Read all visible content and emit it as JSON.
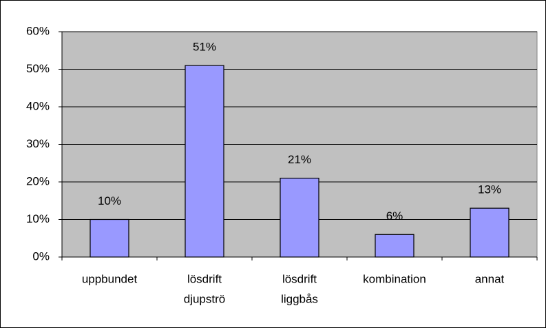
{
  "chart_data": {
    "type": "bar",
    "categories": [
      [
        "uppbundet"
      ],
      [
        "lösdrift",
        "djupströ"
      ],
      [
        "lösdrift",
        "liggbås"
      ],
      [
        "kombination"
      ],
      [
        "annat"
      ]
    ],
    "values": [
      10,
      51,
      21,
      6,
      13
    ],
    "value_labels": [
      "10%",
      "51%",
      "21%",
      "6%",
      "13%"
    ],
    "color": "#9999ff",
    "ylim": [
      0,
      60
    ],
    "yticks": [
      {
        "value": 0,
        "label": "0%"
      },
      {
        "value": 10,
        "label": "10%"
      },
      {
        "value": 20,
        "label": "20%"
      },
      {
        "value": 30,
        "label": "30%"
      },
      {
        "value": 40,
        "label": "40%"
      },
      {
        "value": 50,
        "label": "50%"
      },
      {
        "value": 60,
        "label": "60%"
      }
    ],
    "grid": true
  }
}
